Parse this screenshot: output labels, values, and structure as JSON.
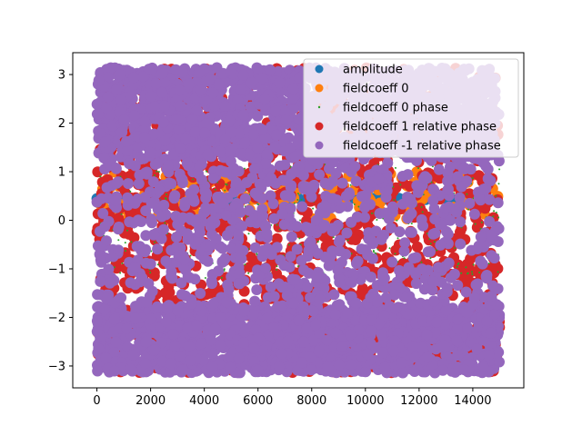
{
  "chart_data": {
    "type": "scatter",
    "title": "",
    "xlabel": "",
    "ylabel": "",
    "xlim": [
      -900,
      15900
    ],
    "ylim": [
      -3.45,
      3.45
    ],
    "x_ticks": [
      0,
      2000,
      4000,
      6000,
      8000,
      10000,
      12000,
      14000
    ],
    "y_ticks": [
      -3,
      -2,
      -1,
      0,
      1,
      2,
      3
    ],
    "grid": false,
    "legend_position": "top-right",
    "n_points": 15000,
    "series": [
      {
        "name": "amplitude",
        "color": "#1f77b4",
        "marker": "large-circle",
        "y_range": [
          0.42,
          0.46
        ]
      },
      {
        "name": "fieldcoeff 0",
        "color": "#ff7f0e",
        "marker": "large-circle",
        "y_range": [
          0.0,
          1.0
        ]
      },
      {
        "name": "fieldcoeff 0 phase",
        "color": "#2ca02c",
        "marker": "small-dot",
        "y_range": [
          -3.14159,
          3.14159
        ]
      },
      {
        "name": "fieldcoeff 1 relative phase",
        "color": "#d62728",
        "marker": "large-circle",
        "y_range": [
          -3.14159,
          3.14159
        ]
      },
      {
        "name": "fieldcoeff -1 relative phase",
        "color": "#9467bd",
        "marker": "large-circle",
        "y_range": [
          -3.14159,
          3.14159
        ]
      }
    ]
  }
}
